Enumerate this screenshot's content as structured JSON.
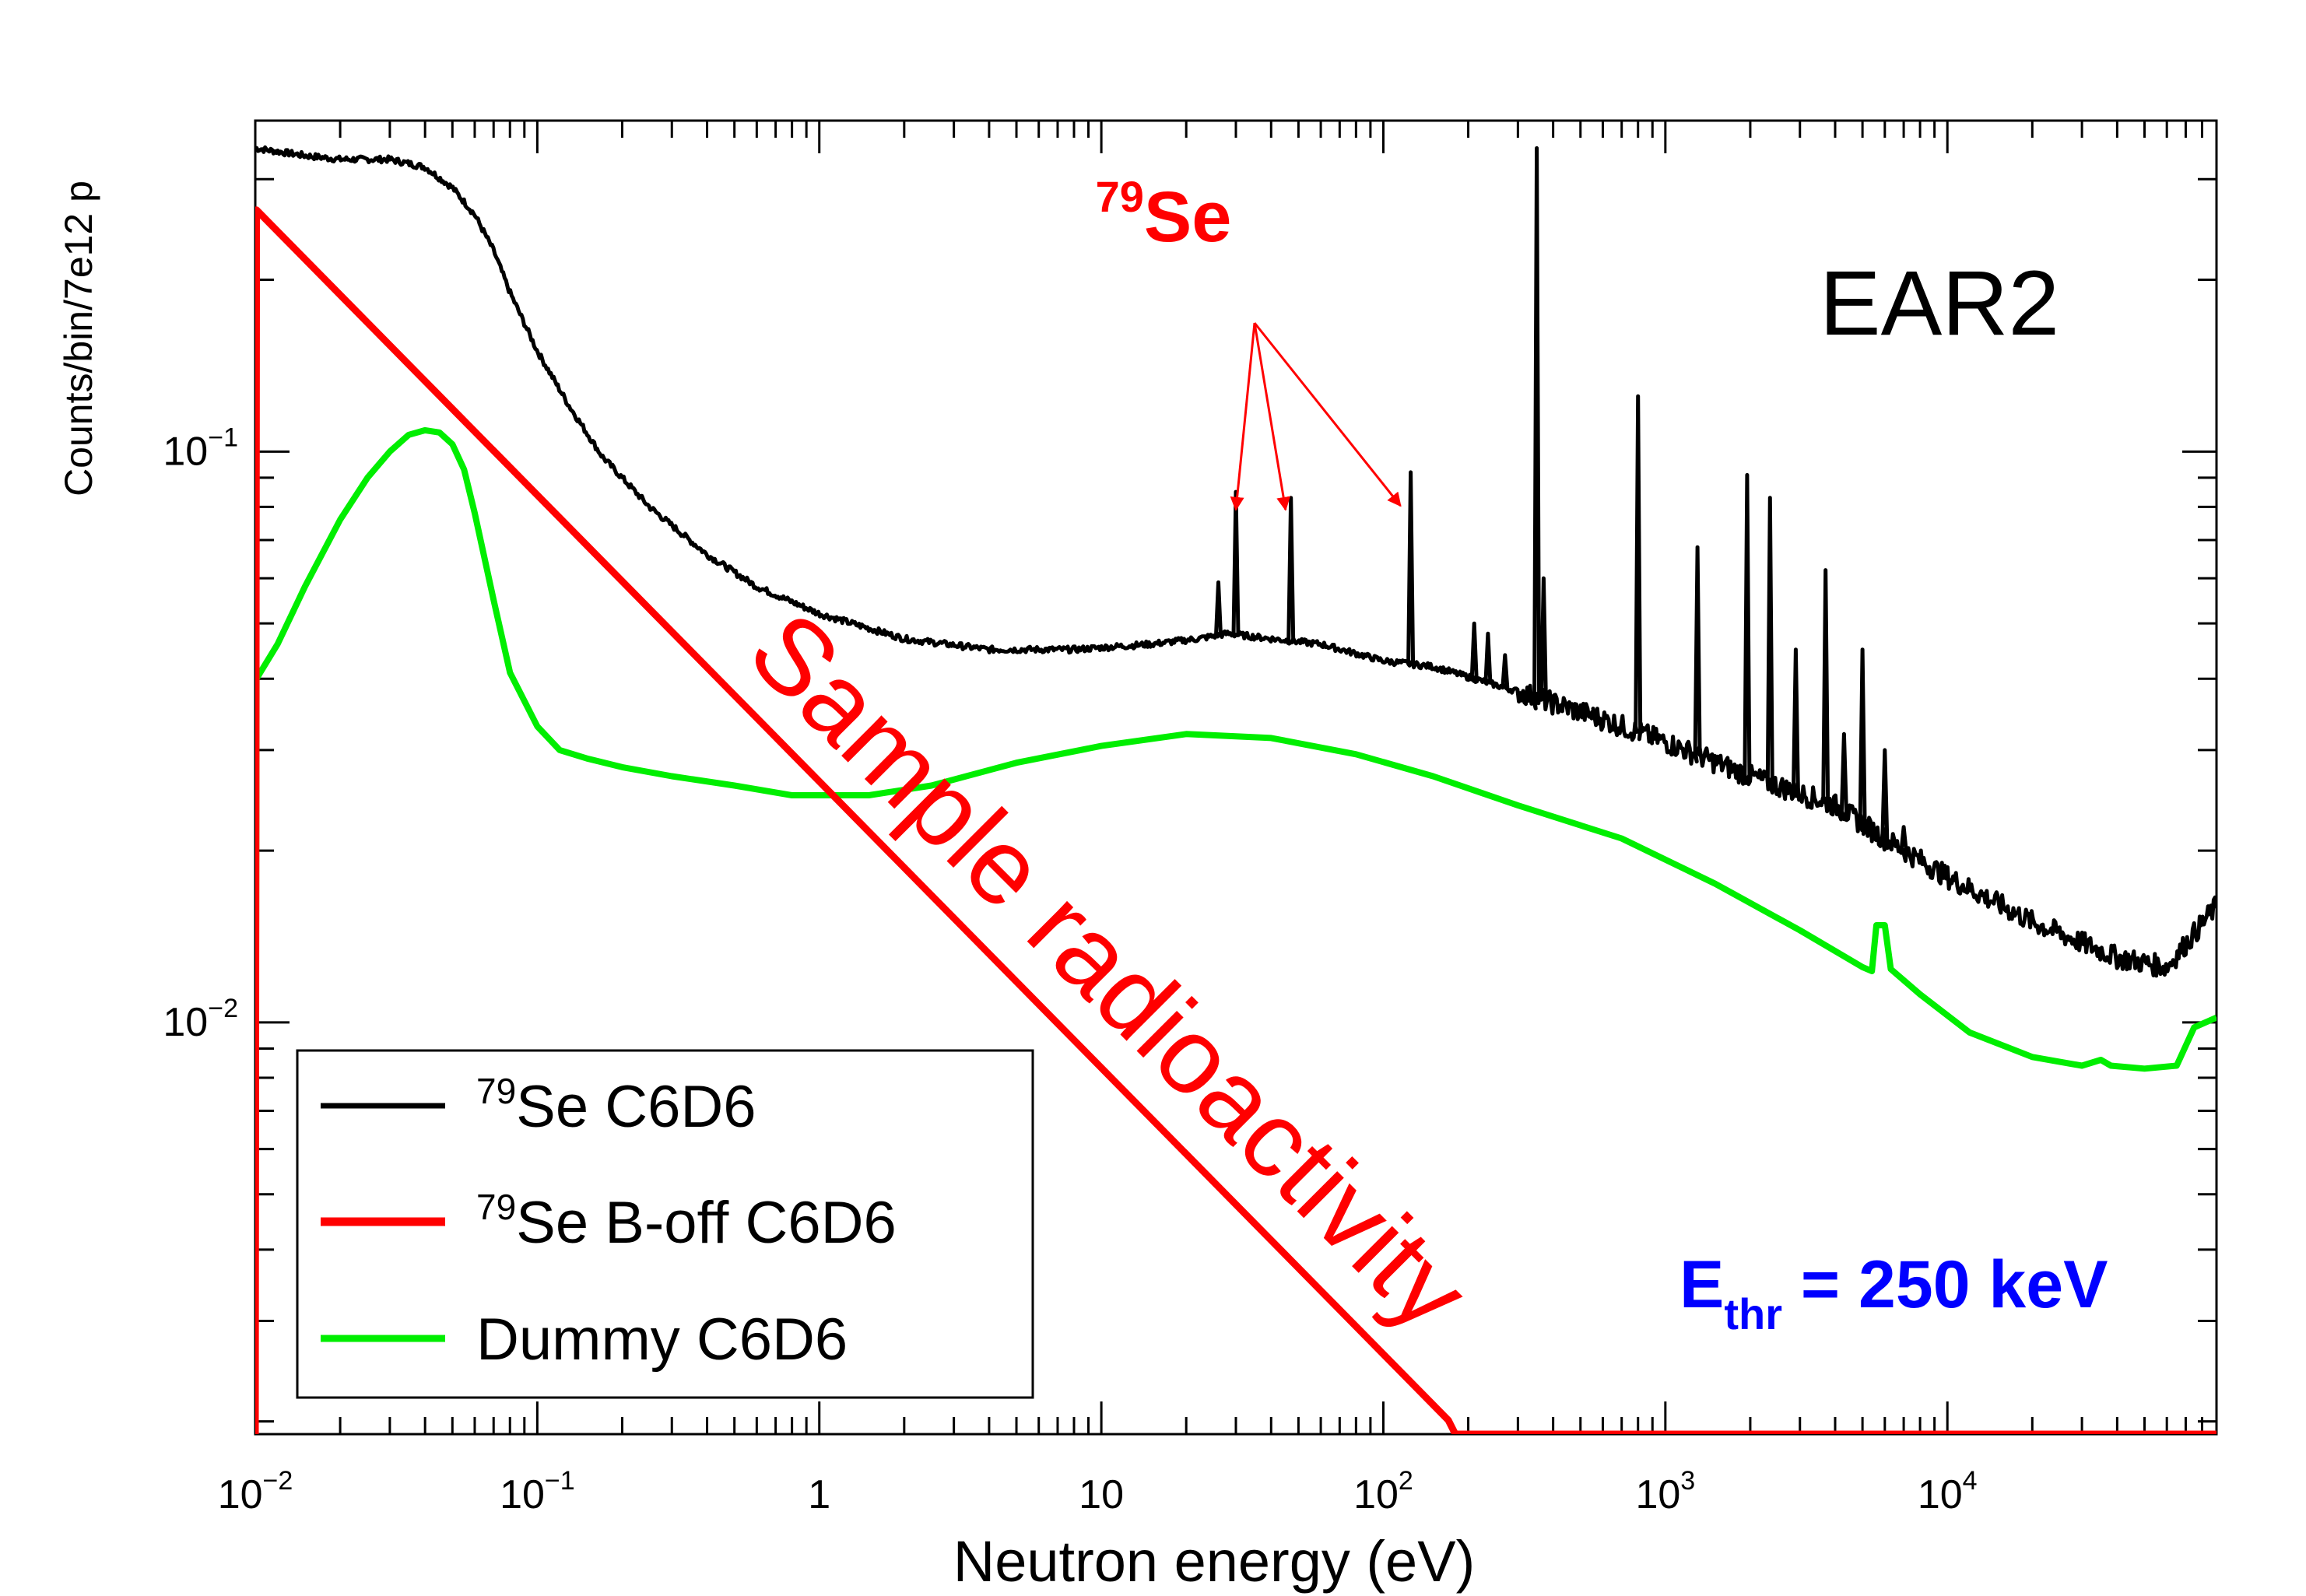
{
  "chart_data": {
    "type": "line",
    "title": "",
    "xlabel": "Neutron energy (eV)",
    "ylabel": "Counts/bin/7e12 p",
    "x_scale": "log",
    "y_scale": "log",
    "xlim": [
      0.01,
      90000
    ],
    "ylim": [
      0.0019,
      0.38
    ],
    "x_ticks": [
      {
        "value": 0.01,
        "base": "10",
        "exp": "−2"
      },
      {
        "value": 0.1,
        "base": "10",
        "exp": "−1"
      },
      {
        "value": 1,
        "base": "1",
        "exp": ""
      },
      {
        "value": 10,
        "base": "10",
        "exp": ""
      },
      {
        "value": 100,
        "base": "10",
        "exp": "2"
      },
      {
        "value": 1000,
        "base": "10",
        "exp": "3"
      },
      {
        "value": 10000,
        "base": "10",
        "exp": "4"
      }
    ],
    "y_ticks": [
      {
        "value": 0.1,
        "base": "10",
        "exp": "−1"
      },
      {
        "value": 0.01,
        "base": "10",
        "exp": "−2"
      }
    ],
    "series": [
      {
        "name": "79Se C6D6",
        "legend_sup": "79",
        "legend_text": "Se C6D6",
        "color": "#000000",
        "x": [
          0.01,
          0.015,
          0.02,
          0.03,
          0.04,
          0.05,
          0.06,
          0.07,
          0.08,
          0.1,
          0.13,
          0.17,
          0.25,
          0.4,
          0.6,
          1,
          2,
          4,
          8,
          15,
          22,
          28,
          40,
          60,
          100,
          150,
          300,
          600,
          1000,
          2000,
          4000,
          6000,
          10000,
          20000,
          40000,
          60000,
          90000
        ],
        "y": [
          0.34,
          0.33,
          0.325,
          0.325,
          0.315,
          0.29,
          0.26,
          0.225,
          0.19,
          0.15,
          0.12,
          0.098,
          0.08,
          0.066,
          0.058,
          0.052,
          0.047,
          0.045,
          0.045,
          0.046,
          0.047,
          0.048,
          0.047,
          0.046,
          0.043,
          0.042,
          0.038,
          0.034,
          0.031,
          0.027,
          0.024,
          0.021,
          0.018,
          0.015,
          0.013,
          0.0125,
          0.016
        ],
        "peaks": [
          {
            "x": 26,
            "y": 0.059
          },
          {
            "x": 30,
            "y": 0.085
          },
          {
            "x": 47,
            "y": 0.083
          },
          {
            "x": 125,
            "y": 0.092
          },
          {
            "x": 210,
            "y": 0.05
          },
          {
            "x": 235,
            "y": 0.048
          },
          {
            "x": 270,
            "y": 0.044
          },
          {
            "x": 350,
            "y": 0.34
          },
          {
            "x": 370,
            "y": 0.06
          },
          {
            "x": 550,
            "y": 0.035
          },
          {
            "x": 800,
            "y": 0.125
          },
          {
            "x": 1300,
            "y": 0.068
          },
          {
            "x": 1950,
            "y": 0.091
          },
          {
            "x": 2350,
            "y": 0.083
          },
          {
            "x": 2900,
            "y": 0.045
          },
          {
            "x": 3700,
            "y": 0.062
          },
          {
            "x": 4300,
            "y": 0.032
          },
          {
            "x": 5000,
            "y": 0.045
          },
          {
            "x": 6000,
            "y": 0.03
          },
          {
            "x": 7000,
            "y": 0.022
          }
        ]
      },
      {
        "name": "79Se B-off C6D6",
        "legend_sup": "79",
        "legend_text": "Se B-off C6D6",
        "color": "#ff0000",
        "x": [
          0.01,
          0.0101,
          170,
          180,
          90000
        ],
        "y": [
          0.0019,
          0.265,
          0.00201,
          0.0019,
          0.0019
        ]
      },
      {
        "name": "Dummy C6D6",
        "legend_sup": "",
        "legend_text": "Dummy C6D6",
        "color": "#00ee00",
        "x": [
          0.01,
          0.0101,
          0.012,
          0.015,
          0.02,
          0.025,
          0.03,
          0.035,
          0.04,
          0.045,
          0.05,
          0.055,
          0.06,
          0.07,
          0.08,
          0.1,
          0.12,
          0.15,
          0.2,
          0.3,
          0.5,
          0.8,
          1,
          1.5,
          2.5,
          5,
          10,
          20,
          40,
          80,
          150,
          300,
          700,
          1500,
          3000,
          5000,
          5400,
          5600,
          6000,
          6300,
          8000,
          12000,
          20000,
          30000,
          35000,
          38000,
          50000,
          65000,
          75000,
          90000
        ],
        "y": [
          0.0019,
          0.04,
          0.046,
          0.058,
          0.076,
          0.09,
          0.1,
          0.107,
          0.109,
          0.108,
          0.103,
          0.093,
          0.078,
          0.055,
          0.041,
          0.033,
          0.03,
          0.029,
          0.028,
          0.027,
          0.026,
          0.025,
          0.025,
          0.025,
          0.026,
          0.0285,
          0.0305,
          0.032,
          0.0315,
          0.0295,
          0.027,
          0.024,
          0.021,
          0.0175,
          0.0145,
          0.0125,
          0.0123,
          0.0148,
          0.0148,
          0.0124,
          0.0112,
          0.0096,
          0.0087,
          0.0084,
          0.0086,
          0.0084,
          0.0083,
          0.0084,
          0.0098,
          0.0102
        ]
      }
    ],
    "annotations": {
      "se79_label_sup": "79",
      "se79_label": "Se",
      "arrow_targets_x": [
        30,
        45,
        115
      ],
      "ear_label": "EAR2",
      "sample_radioactivity": "Sample radioactivity",
      "threshold_main": "E",
      "threshold_sub": "thr",
      "threshold_rest": " = 250 keV"
    },
    "legend": {
      "placement": "bottom-left"
    },
    "grid": false
  }
}
